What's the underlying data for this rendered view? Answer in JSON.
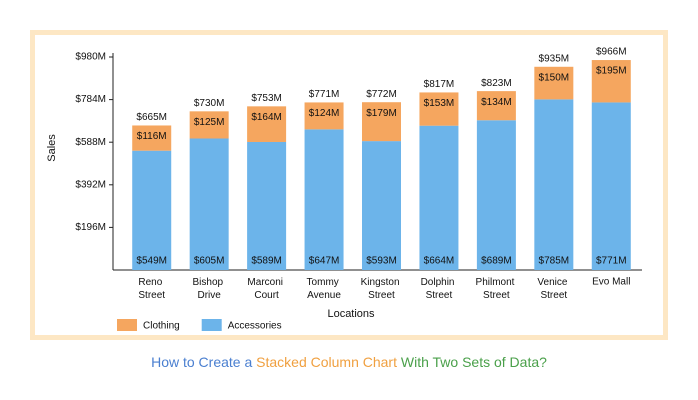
{
  "chart_data": {
    "type": "stacked-bar",
    "title": [
      {
        "text": "How to Create a",
        "color": "#4a7fd0"
      },
      {
        "text": "Stacked Column Chart",
        "color": "#f0a040"
      },
      {
        "text": "With Two Sets of Data?",
        "color": "#4aa04a"
      }
    ],
    "x_label": "Locations",
    "y_label": "Sales",
    "categories": [
      "Reno Street",
      "Bishop Drive",
      "Marconi Court",
      "Tommy Avenue",
      "Kingston Street",
      "Dolphin Street",
      "Philmont Street",
      "Venice Street",
      "Evo Mall"
    ],
    "series": [
      {
        "name": "Accessories",
        "color": "#6cb4ea",
        "values": [
          549,
          605,
          589,
          647,
          593,
          664,
          689,
          785,
          771
        ],
        "value_labels": [
          "$549M",
          "$605M",
          "$589M",
          "$647M",
          "$593M",
          "$664M",
          "$689M",
          "$785M",
          "$771M"
        ]
      },
      {
        "name": "Clothing",
        "color": "#f5a65f",
        "values": [
          116,
          125,
          164,
          124,
          179,
          153,
          134,
          150,
          195
        ],
        "value_labels": [
          "$116M",
          "$125M",
          "$164M",
          "$124M",
          "$179M",
          "$153M",
          "$134M",
          "$150M",
          "$195M"
        ]
      }
    ],
    "totals": {
      "values": [
        665,
        730,
        753,
        771,
        772,
        817,
        823,
        935,
        966
      ],
      "value_labels": [
        "$665M",
        "$730M",
        "$753M",
        "$771M",
        "$772M",
        "$817M",
        "$823M",
        "$935M",
        "$966M"
      ]
    },
    "ylim": [
      0,
      980
    ],
    "yticks": [
      {
        "value": 196,
        "label": "$196M"
      },
      {
        "value": 392,
        "label": "$392M"
      },
      {
        "value": 588,
        "label": "$588M"
      },
      {
        "value": 784,
        "label": "$784M"
      },
      {
        "value": 980,
        "label": "$980M"
      }
    ]
  }
}
